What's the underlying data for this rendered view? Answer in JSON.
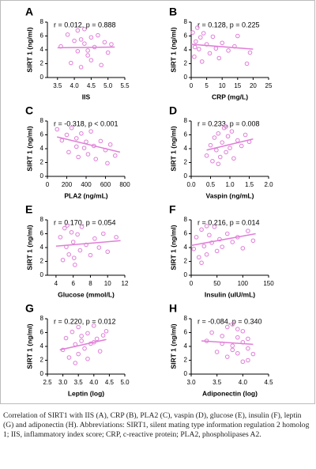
{
  "chart_data": [
    {
      "type": "scatter",
      "panel": "A",
      "stat": "r = 0.012, p = 0.888",
      "x_label": "IIS",
      "y_label": "SIRT 1 (ng/ml)",
      "color": "#e07fd8",
      "x": [
        3.6,
        3.8,
        3.9,
        4.0,
        4.1,
        4.1,
        4.2,
        4.3,
        4.3,
        4.4,
        4.5,
        4.5,
        4.6,
        4.7,
        4.8,
        4.9,
        5.0,
        5.1,
        4.2,
        4.4
      ],
      "y": [
        4.5,
        6.2,
        2.1,
        5.3,
        3.8,
        6.8,
        1.5,
        4.9,
        7.0,
        3.2,
        5.8,
        2.5,
        4.4,
        6.1,
        1.8,
        5.1,
        3.6,
        4.8,
        5.5,
        3.9
      ],
      "trend": {
        "x": [
          3.5,
          5.2
        ],
        "y": [
          4.3,
          4.4
        ]
      },
      "xlim": [
        3.2,
        5.5
      ],
      "xticks": [
        3.5,
        {
          "value": 4,
          "label": "4.0"
        },
        4.5,
        {
          "value": 5,
          "label": "5.0"
        },
        5.5
      ],
      "ylim": [
        0,
        8
      ],
      "yticks": [
        0,
        2,
        4,
        6,
        8
      ]
    },
    {
      "type": "scatter",
      "panel": "B",
      "stat": "r = 0.128, p = 0.225",
      "x_label": "CRP (mg/L)",
      "y_label": "SIRT 1 (ng/ml)",
      "color": "#e07fd8",
      "x": [
        0.5,
        1,
        1.5,
        2,
        2.5,
        3,
        3.5,
        4,
        5,
        6,
        7,
        8,
        9,
        10,
        12,
        14,
        15,
        18,
        19,
        1.2
      ],
      "y": [
        6.5,
        3.0,
        5.2,
        7.2,
        4.1,
        5.8,
        2.3,
        6.4,
        4.8,
        3.5,
        5.9,
        4.2,
        2.8,
        5.0,
        3.9,
        4.5,
        6.0,
        2.0,
        3.6,
        4.4
      ],
      "trend": {
        "x": [
          0,
          20
        ],
        "y": [
          4.8,
          4.1
        ]
      },
      "xlim": [
        0,
        25
      ],
      "xticks": [
        0,
        5,
        10,
        15,
        20,
        25
      ],
      "ylim": [
        0,
        8
      ],
      "yticks": [
        0,
        2,
        4,
        6,
        8
      ]
    },
    {
      "type": "scatter",
      "panel": "C",
      "stat": "r = -0.318, p < 0.001",
      "x_label": "PLA2 (ng/mL)",
      "y_label": "SIRT 1 (ng/ml)",
      "color": "#e07fd8",
      "x": [
        100,
        150,
        200,
        220,
        250,
        300,
        320,
        350,
        380,
        400,
        420,
        450,
        480,
        500,
        550,
        600,
        620,
        650,
        700,
        300
      ],
      "y": [
        6.8,
        5.2,
        6.0,
        3.5,
        7.0,
        5.5,
        2.8,
        6.2,
        4.1,
        5.0,
        3.2,
        6.5,
        4.4,
        2.5,
        5.1,
        3.8,
        1.9,
        4.6,
        3.0,
        4.3
      ],
      "trend": {
        "x": [
          100,
          750
        ],
        "y": [
          5.7,
          3.5
        ]
      },
      "xlim": [
        0,
        800
      ],
      "xticks": [
        0,
        200,
        400,
        600,
        800
      ],
      "ylim": [
        0,
        8
      ],
      "yticks": [
        0,
        2,
        4,
        6,
        8
      ]
    },
    {
      "type": "scatter",
      "panel": "D",
      "stat": "r = 0.233, p = 0.008",
      "x_label": "Vaspin (ng/mL)",
      "y_label": "SIRT 1 (ng/ml)",
      "color": "#e07fd8",
      "x": [
        0.4,
        0.5,
        0.55,
        0.6,
        0.65,
        0.7,
        0.75,
        0.8,
        0.85,
        0.9,
        0.95,
        1.0,
        1.05,
        1.1,
        1.2,
        1.3,
        1.4,
        1.5,
        0.7,
        0.9
      ],
      "y": [
        3.0,
        4.5,
        2.2,
        5.6,
        3.8,
        6.2,
        2.8,
        4.9,
        7.0,
        3.5,
        5.8,
        4.1,
        6.5,
        2.6,
        5.2,
        4.4,
        6.0,
        5.0,
        1.8,
        7.2
      ],
      "trend": {
        "x": [
          0.4,
          1.6
        ],
        "y": [
          3.8,
          5.4
        ]
      },
      "xlim": [
        0,
        2
      ],
      "xticks": [
        {
          "value": 0,
          "label": "0.0"
        },
        0.5,
        {
          "value": 1,
          "label": "1.0"
        },
        1.5,
        {
          "value": 2,
          "label": "2.0"
        }
      ],
      "ylim": [
        0,
        8
      ],
      "yticks": [
        0,
        2,
        4,
        6,
        8
      ]
    },
    {
      "type": "scatter",
      "panel": "E",
      "stat": "r = 0.170, p = 0.054",
      "x_label": "Glucose (mmol/L)",
      "y_label": "SIRT 1 (ng/ml)",
      "color": "#e07fd8",
      "x": [
        4.5,
        4.8,
        5.0,
        5.2,
        5.5,
        5.8,
        6.0,
        6.2,
        6.5,
        6.8,
        7.0,
        7.5,
        8.0,
        8.5,
        9.0,
        9.5,
        10.0,
        11.0,
        5.3,
        6.1
      ],
      "y": [
        5.5,
        2.2,
        6.8,
        4.1,
        3.0,
        6.2,
        4.8,
        1.5,
        5.9,
        3.6,
        7.0,
        4.4,
        2.9,
        5.3,
        4.0,
        6.0,
        3.4,
        5.5,
        7.2,
        2.5
      ],
      "trend": {
        "x": [
          4,
          11.5
        ],
        "y": [
          4.2,
          5.0
        ]
      },
      "xlim": [
        3,
        12
      ],
      "xticks": [
        4,
        6,
        8,
        10,
        12
      ],
      "ylim": [
        0,
        8
      ],
      "yticks": [
        0,
        2,
        4,
        6,
        8
      ]
    },
    {
      "type": "scatter",
      "panel": "F",
      "stat": "r = 0.216, p = 0.014",
      "x_label": "Insulin (uIU/mL)",
      "y_label": "SIRT 1 (ng/ml)",
      "color": "#e07fd8",
      "x": [
        5,
        10,
        15,
        20,
        25,
        30,
        35,
        40,
        45,
        50,
        55,
        60,
        70,
        80,
        90,
        100,
        110,
        120,
        20,
        30
      ],
      "y": [
        3.8,
        5.5,
        2.6,
        6.6,
        4.2,
        3.0,
        5.8,
        4.7,
        7.0,
        3.5,
        5.2,
        4.1,
        6.0,
        4.8,
        5.5,
        3.9,
        6.4,
        5.0,
        1.8,
        7.1
      ],
      "trend": {
        "x": [
          0,
          125
        ],
        "y": [
          4.3,
          6.0
        ]
      },
      "xlim": [
        0,
        150
      ],
      "xticks": [
        0,
        50,
        100,
        150
      ],
      "ylim": [
        0,
        8
      ],
      "yticks": [
        0,
        2,
        4,
        6,
        8
      ]
    },
    {
      "type": "scatter",
      "panel": "G",
      "stat": "r = 0.220, p = 0.012",
      "x_label": "Leptin (log)",
      "y_label": "SIRT 1 (ng/ml)",
      "color": "#e07fd8",
      "x": [
        3.0,
        3.1,
        3.2,
        3.3,
        3.4,
        3.5,
        3.5,
        3.6,
        3.7,
        3.8,
        3.9,
        4.0,
        4.1,
        4.2,
        4.3,
        4.4,
        3.4,
        3.6,
        3.8,
        4.0
      ],
      "y": [
        3.5,
        5.2,
        2.4,
        6.1,
        4.3,
        2.9,
        6.8,
        4.8,
        3.7,
        5.9,
        4.4,
        7.0,
        5.1,
        3.3,
        5.6,
        6.2,
        1.6,
        5.5,
        2.2,
        4.6
      ],
      "trend": {
        "x": [
          2.9,
          4.4
        ],
        "y": [
          3.5,
          5.0
        ]
      },
      "xlim": [
        2.5,
        5
      ],
      "xticks": [
        2.5,
        {
          "value": 3,
          "label": "3.0"
        },
        3.5,
        {
          "value": 4,
          "label": "4.0"
        },
        4.5,
        {
          "value": 5,
          "label": "5.0"
        }
      ],
      "ylim": [
        0,
        8
      ],
      "yticks": [
        0,
        2,
        4,
        6,
        8
      ]
    },
    {
      "type": "scatter",
      "panel": "H",
      "stat": "r = -0.084, p = 0.340",
      "x_label": "Adiponectin (log)",
      "y_label": "SIRT 1 (ng/ml)",
      "color": "#e07fd8",
      "x": [
        3.3,
        3.4,
        3.5,
        3.6,
        3.7,
        3.7,
        3.8,
        3.8,
        3.9,
        3.9,
        4.0,
        4.0,
        4.0,
        4.1,
        4.1,
        4.2,
        3.6,
        3.9,
        4.1,
        3.8
      ],
      "y": [
        4.8,
        6.0,
        3.2,
        5.5,
        2.5,
        6.8,
        4.1,
        7.2,
        3.0,
        5.3,
        1.8,
        4.6,
        6.2,
        3.7,
        5.1,
        2.9,
        4.4,
        6.5,
        2.0,
        3.5
      ],
      "trend": {
        "x": [
          3.2,
          4.2
        ],
        "y": [
          4.8,
          4.3
        ]
      },
      "xlim": [
        3,
        4.5
      ],
      "xticks": [
        {
          "value": 3,
          "label": "3.0"
        },
        3.5,
        {
          "value": 4,
          "label": "4.0"
        },
        4.5
      ],
      "ylim": [
        0,
        8
      ],
      "yticks": [
        0,
        2,
        4,
        6,
        8
      ]
    }
  ],
  "caption": "Correlation of SIRT1 with IIS (A), CRP (B), PLA2 (C), vaspin (D), glucose (E), insulin (F), leptin (G) and adiponectin (H). Abbreviations: SIRT1, silent mating type information regulation 2 homolog 1; IIS, inflammatory index score; CRP, c-reactive protein; PLA2, phospholipases A2."
}
